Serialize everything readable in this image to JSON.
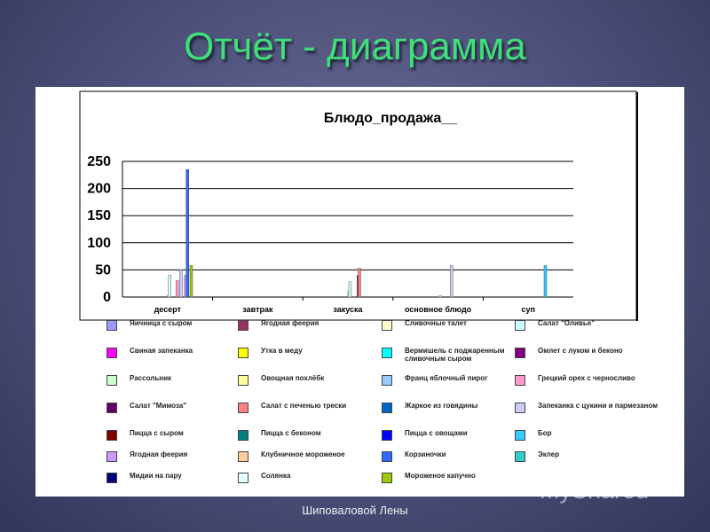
{
  "slide_title": "Отчёт - диаграмма",
  "footer": "Шиповаловой Лены",
  "watermark": "MyShared",
  "chart_data": {
    "type": "bar",
    "title": "Блюдо_продажа__",
    "categories": [
      "десерт",
      "завтрак",
      "закуска",
      "основное блюдо",
      "суп"
    ],
    "ylim": [
      0,
      250
    ],
    "yticks": [
      0,
      50,
      100,
      150,
      200,
      250
    ],
    "grid": true,
    "legend_position": "bottom",
    "series": [
      {
        "name": "Яичница с сыром",
        "color": "#9999ff",
        "values": [
          0,
          0,
          0,
          0,
          0
        ]
      },
      {
        "name": "Ягодная феерия",
        "color": "#993366",
        "values": [
          0,
          0,
          0,
          0,
          0
        ]
      },
      {
        "name": "Сливочные талет",
        "color": "#ffffcc",
        "values": [
          3,
          0,
          10,
          0,
          0
        ]
      },
      {
        "name": "Салат \"Оливье\"",
        "color": "#ccffff",
        "values": [
          40,
          0,
          28,
          2,
          0
        ]
      },
      {
        "name": "Свиная запеканка",
        "color": "#ff00ff",
        "values": [
          0,
          0,
          0,
          0,
          0
        ]
      },
      {
        "name": "Утка в меду",
        "color": "#ffff00",
        "values": [
          0,
          0,
          0,
          0,
          0
        ]
      },
      {
        "name": "Вермишель с поджаренным сливочным сыром",
        "color": "#00ffff",
        "values": [
          0,
          0,
          0,
          0,
          0
        ]
      },
      {
        "name": "Омлет с луком и беконо",
        "color": "#800080",
        "values": [
          0,
          0,
          0,
          0,
          0
        ]
      },
      {
        "name": "Рассольник",
        "color": "#ccffcc",
        "values": [
          0,
          0,
          0,
          0,
          0
        ]
      },
      {
        "name": "Овощная похлёбк",
        "color": "#ffff99",
        "values": [
          0,
          0,
          0,
          0,
          0
        ]
      },
      {
        "name": "Франц яблочный пирог",
        "color": "#99ccff",
        "values": [
          0,
          0,
          0,
          0,
          0
        ]
      },
      {
        "name": "Грецкий орех с черносливо",
        "color": "#ff99cc",
        "values": [
          30,
          0,
          0,
          0,
          0
        ]
      },
      {
        "name": "Салат \"Мимоза\"",
        "color": "#660066",
        "values": [
          0,
          0,
          40,
          0,
          0
        ]
      },
      {
        "name": "Салат с печенью трески",
        "color": "#ff8080",
        "values": [
          0,
          0,
          53,
          0,
          0
        ]
      },
      {
        "name": "Жаркое из говядины",
        "color": "#0066cc",
        "values": [
          0,
          0,
          0,
          0,
          0
        ]
      },
      {
        "name": "Запеканка с цукини и пармезаном",
        "color": "#ccccff",
        "values": [
          50,
          0,
          0,
          58,
          0
        ]
      },
      {
        "name": "Пицца с сыром",
        "color": "#800000",
        "values": [
          0,
          0,
          0,
          0,
          0
        ]
      },
      {
        "name": "Пицца с беконом",
        "color": "#008080",
        "values": [
          0,
          0,
          0,
          0,
          0
        ]
      },
      {
        "name": "Пицца с овощами",
        "color": "#0000ff",
        "values": [
          0,
          0,
          0,
          0,
          0
        ]
      },
      {
        "name": "Бор",
        "color": "#33ccff",
        "values": [
          0,
          0,
          0,
          0,
          58
        ]
      },
      {
        "name": "Ягодная феерия",
        "color": "#cc99ff",
        "values": [
          40,
          0,
          0,
          0,
          0
        ]
      },
      {
        "name": "Клубничное мороженое",
        "color": "#ffcc99",
        "values": [
          0,
          0,
          0,
          0,
          0
        ]
      },
      {
        "name": "Корзиночки",
        "color": "#3366ff",
        "values": [
          235,
          0,
          0,
          0,
          0
        ]
      },
      {
        "name": "Эклер",
        "color": "#33cccc",
        "values": [
          0,
          0,
          0,
          0,
          0
        ]
      },
      {
        "name": "Мидии на пару",
        "color": "#000080",
        "values": [
          0,
          0,
          0,
          0,
          0
        ]
      },
      {
        "name": "Солянка",
        "color": "#e8ffff",
        "values": [
          0,
          0,
          0,
          0,
          0
        ]
      },
      {
        "name": "Мороженое капучно",
        "color": "#99cc00",
        "values": [
          58,
          0,
          0,
          0,
          0
        ]
      }
    ]
  }
}
